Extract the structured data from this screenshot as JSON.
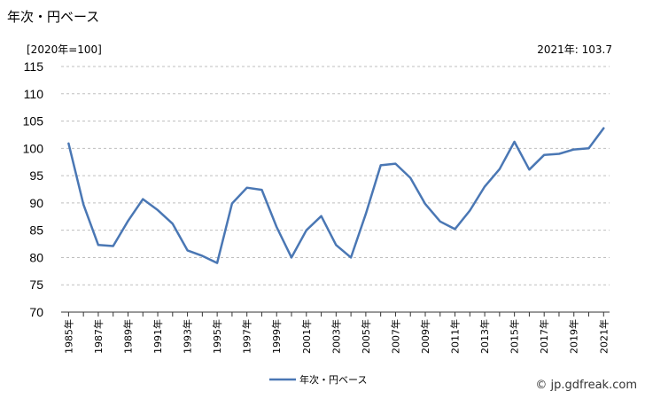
{
  "header": {
    "title": "年次・円ベース",
    "unit_label": "[2020年=100]",
    "latest_label": "2021年: 103.7",
    "credit": "© jp.gdfreak.com"
  },
  "chart_data": {
    "type": "line",
    "x": [
      "1985年",
      "1986年",
      "1987年",
      "1988年",
      "1989年",
      "1990年",
      "1991年",
      "1992年",
      "1993年",
      "1994年",
      "1995年",
      "1996年",
      "1997年",
      "1998年",
      "1999年",
      "2000年",
      "2001年",
      "2002年",
      "2003年",
      "2004年",
      "2005年",
      "2006年",
      "2007年",
      "2008年",
      "2009年",
      "2010年",
      "2011年",
      "2012年",
      "2013年",
      "2014年",
      "2015年",
      "2016年",
      "2017年",
      "2018年",
      "2019年",
      "2020年",
      "2021年"
    ],
    "x_tick_labels": [
      "1985年",
      "1987年",
      "1989年",
      "1991年",
      "1993年",
      "1995年",
      "1997年",
      "1999年",
      "2001年",
      "2003年",
      "2005年",
      "2007年",
      "2009年",
      "2011年",
      "2013年",
      "2015年",
      "2017年",
      "2019年",
      "2021年"
    ],
    "series": [
      {
        "name": "年次・円ベース",
        "color": "#4a77b4",
        "values": [
          100.9,
          89.7,
          82.3,
          82.1,
          86.7,
          90.7,
          88.7,
          86.2,
          81.3,
          80.3,
          79.0,
          89.9,
          92.8,
          92.4,
          85.6,
          80.0,
          85.0,
          87.6,
          82.3,
          80.0,
          88.0,
          96.9,
          97.2,
          94.6,
          89.8,
          86.6,
          85.2,
          88.6,
          93.0,
          96.2,
          101.2,
          96.1,
          98.8,
          99.0,
          99.8,
          100.0,
          103.7
        ]
      }
    ],
    "y_ticks": [
      70,
      75,
      80,
      85,
      90,
      95,
      100,
      105,
      110,
      115
    ],
    "ylim": [
      70,
      115
    ],
    "grid": "horizontal dashed",
    "legend_position": "bottom-center"
  }
}
